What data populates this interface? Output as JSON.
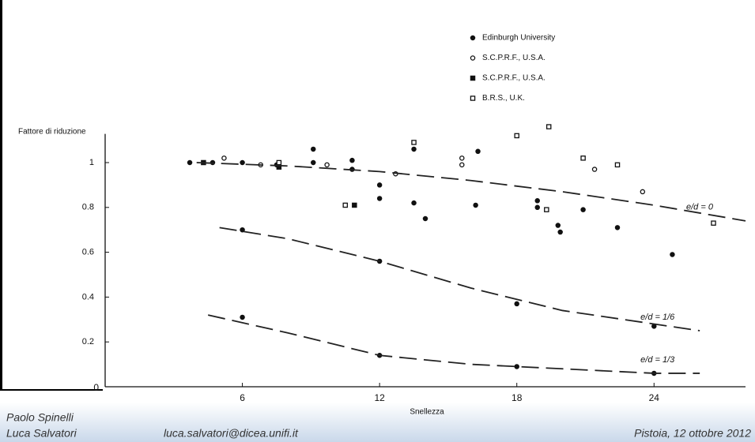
{
  "chart_data": {
    "type": "scatter",
    "ylabel": "Fattore di riduzione",
    "xlabel": "Snellezza",
    "xlim": [
      0,
      28
    ],
    "ylim": [
      0,
      1.1
    ],
    "xticks": [
      0,
      6,
      12,
      18,
      24
    ],
    "yticks": [
      0.2,
      0.4,
      0.6,
      0.8,
      1
    ],
    "series": [
      {
        "name": "Edinburgh University",
        "type": "scatter",
        "marker": "filled-circle",
        "color": "#111111",
        "x": [
          3.7,
          4.7,
          6,
          7.5,
          9.1,
          9.1,
          10.8,
          10.8,
          12,
          12,
          13.5,
          13.5,
          14,
          16.3,
          16.2,
          18.9,
          18.9,
          19.8,
          19.9,
          20.9,
          22.4,
          24.8,
          6,
          12,
          18,
          24,
          6,
          12,
          18,
          24
        ],
        "values": [
          1.0,
          1.0,
          1.0,
          0.99,
          1.06,
          1.0,
          1.01,
          0.97,
          0.9,
          0.84,
          1.06,
          0.82,
          0.75,
          1.05,
          0.81,
          0.83,
          0.8,
          0.72,
          0.69,
          0.79,
          0.71,
          0.59,
          0.7,
          0.56,
          0.37,
          0.27,
          0.31,
          0.14,
          0.09,
          0.06
        ]
      },
      {
        "name": "S.C.P.R.F., U.S.A.",
        "type": "scatter",
        "marker": "open-circle",
        "color": "#111111",
        "x": [
          5.2,
          6.8,
          9.7,
          12.7,
          15.6,
          15.6,
          21.4,
          23.5
        ],
        "values": [
          1.02,
          0.99,
          0.99,
          0.95,
          1.02,
          0.99,
          0.97,
          0.87
        ]
      },
      {
        "name": "S.C.P.R.F., U.S.A.",
        "type": "scatter",
        "marker": "filled-square",
        "color": "#111111",
        "x": [
          4.3,
          7.6,
          10.9
        ],
        "values": [
          1.0,
          0.98,
          0.81
        ]
      },
      {
        "name": "B.R.S., U.K.",
        "type": "scatter",
        "marker": "open-square",
        "color": "#111111",
        "x": [
          7.6,
          10.5,
          13.5,
          18,
          19.4,
          19.3,
          20.9,
          22.4,
          26.6
        ],
        "values": [
          1.0,
          0.81,
          1.09,
          1.12,
          1.16,
          0.79,
          1.02,
          0.99,
          0.73
        ]
      },
      {
        "name": "e/d = 0",
        "type": "line",
        "style": "dashed",
        "color": "#222222",
        "x": [
          4,
          8,
          12,
          16,
          20,
          24,
          28
        ],
        "values": [
          1.0,
          0.985,
          0.96,
          0.92,
          0.87,
          0.81,
          0.74
        ]
      },
      {
        "name": "e/d = 1/6",
        "type": "line",
        "style": "dashed",
        "color": "#222222",
        "x": [
          5,
          8,
          12,
          16,
          20,
          24,
          26
        ],
        "values": [
          0.71,
          0.66,
          0.56,
          0.44,
          0.34,
          0.28,
          0.25
        ]
      },
      {
        "name": "e/d = 1/3",
        "type": "line",
        "style": "dashed",
        "color": "#222222",
        "x": [
          4.5,
          8,
          12,
          16,
          20,
          24,
          26
        ],
        "values": [
          0.32,
          0.24,
          0.14,
          0.1,
          0.08,
          0.06,
          0.06
        ]
      }
    ]
  },
  "footer": {
    "authors": [
      "Paolo Spinelli",
      "Luca Salvatori"
    ],
    "email": "luca.salvatori@dicea.unifi.it",
    "place_date": "Pistoia, 12 ottobre 2012"
  }
}
